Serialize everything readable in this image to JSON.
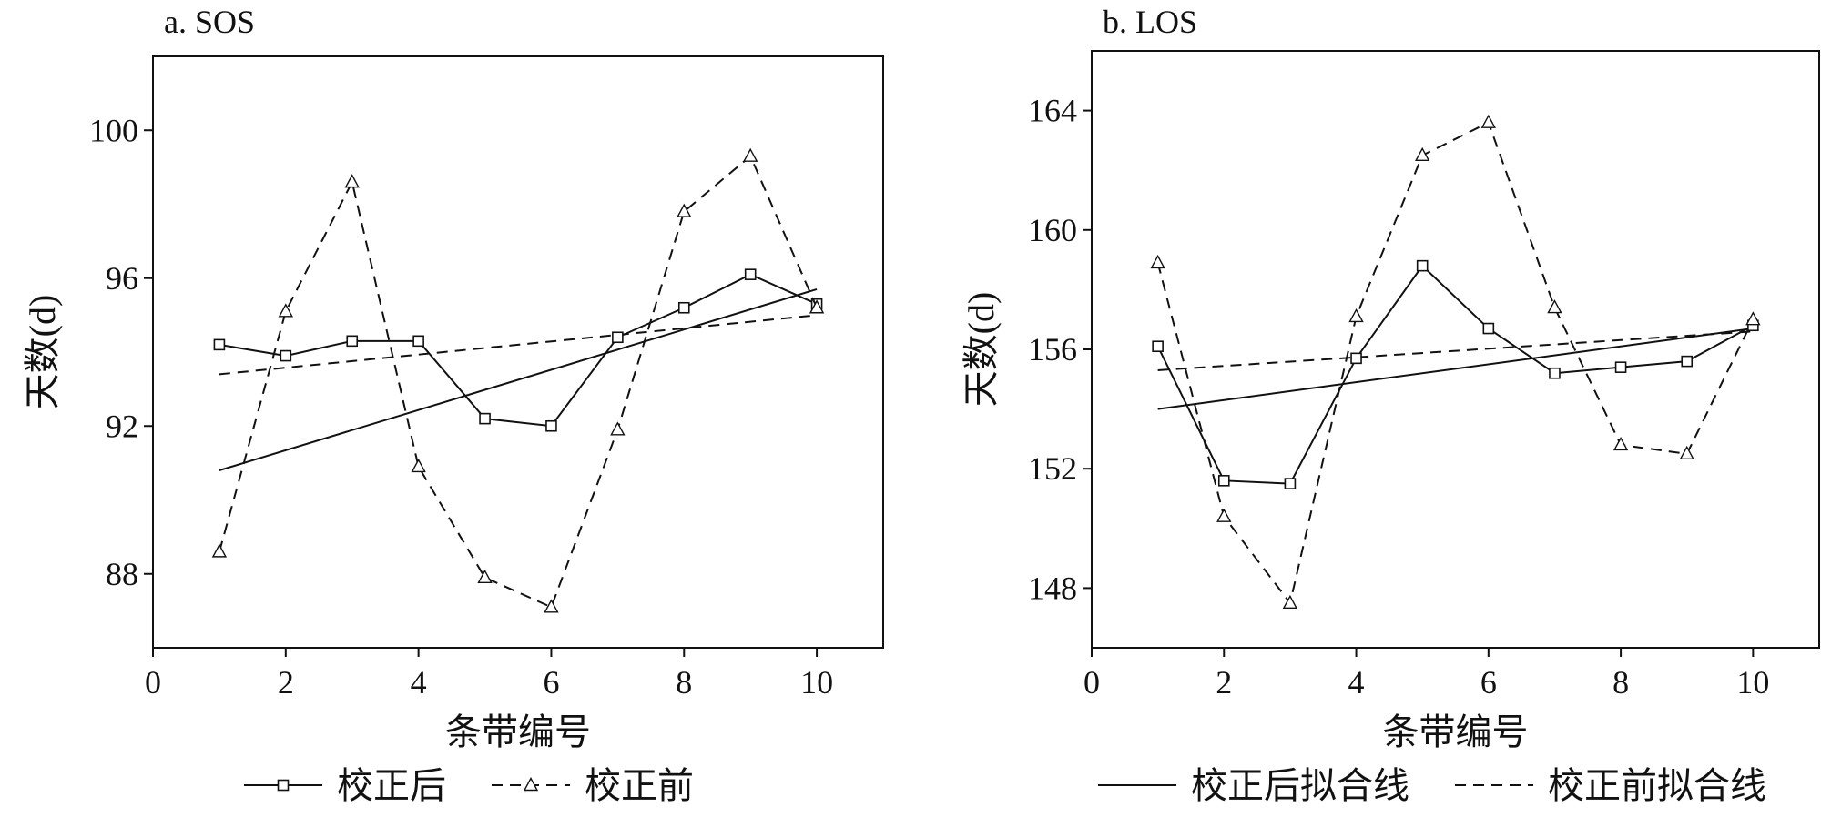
{
  "chart_data": [
    {
      "type": "line",
      "title": "a. SOS",
      "xlabel": "条带编号",
      "ylabel": "天数(d)",
      "xlim": [
        0,
        11
      ],
      "ylim": [
        86,
        102
      ],
      "xticks": [
        0,
        2,
        4,
        6,
        8,
        10
      ],
      "yticks": [
        88,
        92,
        96,
        100
      ],
      "grid": false,
      "series": [
        {
          "name": "校正后",
          "style": "solid",
          "marker": "square",
          "x": [
            1,
            2,
            3,
            4,
            5,
            6,
            7,
            8,
            9,
            10
          ],
          "values": [
            94.2,
            93.9,
            94.3,
            94.3,
            92.2,
            92.0,
            94.4,
            95.2,
            96.1,
            95.3
          ]
        },
        {
          "name": "校正前",
          "style": "dashed",
          "marker": "triangle",
          "x": [
            1,
            2,
            3,
            4,
            5,
            6,
            7,
            8,
            9,
            10
          ],
          "values": [
            88.6,
            95.1,
            98.6,
            90.9,
            87.9,
            87.1,
            91.9,
            97.8,
            99.3,
            95.2
          ]
        }
      ],
      "fits": [
        {
          "style": "solid",
          "x": [
            1,
            10
          ],
          "values": [
            90.8,
            95.7
          ]
        },
        {
          "style": "dashed",
          "x": [
            1,
            10
          ],
          "values": [
            93.4,
            95.0
          ]
        }
      ]
    },
    {
      "type": "line",
      "title": "b. LOS",
      "xlabel": "条带编号",
      "ylabel": "天数(d)",
      "xlim": [
        0,
        11
      ],
      "ylim": [
        146,
        166
      ],
      "xticks": [
        0,
        2,
        4,
        6,
        8,
        10
      ],
      "yticks": [
        148,
        152,
        156,
        160,
        164
      ],
      "grid": false,
      "series": [
        {
          "name": "校正后",
          "style": "solid",
          "marker": "square",
          "x": [
            1,
            2,
            3,
            4,
            5,
            6,
            7,
            8,
            9,
            10
          ],
          "values": [
            156.1,
            151.6,
            151.5,
            155.7,
            158.8,
            156.7,
            155.2,
            155.4,
            155.6,
            156.8
          ]
        },
        {
          "name": "校正前",
          "style": "dashed",
          "marker": "triangle",
          "x": [
            1,
            2,
            3,
            4,
            5,
            6,
            7,
            8,
            9,
            10
          ],
          "values": [
            158.9,
            150.4,
            147.5,
            157.1,
            162.5,
            163.6,
            157.4,
            152.8,
            152.5,
            157.0
          ]
        }
      ],
      "fits": [
        {
          "style": "solid",
          "x": [
            1,
            10
          ],
          "values": [
            154.0,
            156.7
          ]
        },
        {
          "style": "dashed",
          "x": [
            1,
            10
          ],
          "values": [
            155.3,
            156.6
          ]
        }
      ]
    }
  ],
  "legend": {
    "left": [
      {
        "label": "校正后",
        "style": "solid",
        "marker": "square"
      },
      {
        "label": "校正前",
        "style": "dashed",
        "marker": "triangle"
      }
    ],
    "right": [
      {
        "label": "校正后拟合线",
        "style": "solid",
        "marker": "none"
      },
      {
        "label": "校正前拟合线",
        "style": "dashed",
        "marker": "none"
      }
    ]
  }
}
